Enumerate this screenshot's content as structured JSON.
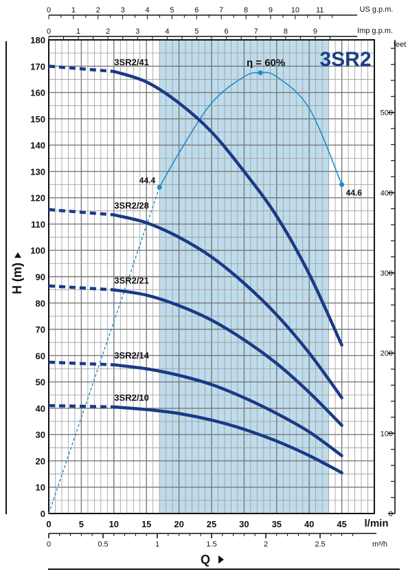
{
  "chart_data": {
    "type": "line",
    "title": "3SR2",
    "xlabel": "Q",
    "ylabel": "H (m)",
    "x_unit": "l/min",
    "x_unit_m3h": "m³/h",
    "y_unit_right": "feet",
    "top_unit_us": "US g.p.m.",
    "top_unit_imp": "Imp g.p.m.",
    "xlim": [
      0,
      50
    ],
    "ylim": [
      0,
      180
    ],
    "x_ticks": [
      0,
      5,
      10,
      15,
      20,
      25,
      30,
      35,
      40,
      45
    ],
    "x_tick_labels": [
      "0",
      "5",
      "10",
      "15",
      "20",
      "25",
      "30",
      "35",
      "40",
      "45"
    ],
    "y_ticks": [
      0,
      10,
      20,
      30,
      40,
      50,
      60,
      70,
      80,
      90,
      100,
      110,
      120,
      130,
      140,
      150,
      160,
      170,
      180
    ],
    "y_tick_labels": [
      "0",
      "10",
      "20",
      "30",
      "40",
      "50",
      "60",
      "70",
      "80",
      "90",
      "100",
      "110",
      "120",
      "130",
      "140",
      "150",
      "160",
      "170",
      "180"
    ],
    "feet_ticks": [
      0,
      100,
      200,
      300,
      400,
      500
    ],
    "feet_tick_labels": [
      "0",
      "100",
      "200",
      "300",
      "400",
      "500"
    ],
    "m3h_ticks": [
      0,
      0.5,
      1,
      1.5,
      2,
      2.5
    ],
    "m3h_tick_labels": [
      "0",
      "0.5",
      "1",
      "1.5",
      "2",
      "2.5"
    ],
    "us_gpm_ticks": [
      0,
      1,
      2,
      3,
      4,
      5,
      6,
      7,
      8,
      9,
      10,
      11
    ],
    "us_gpm_tick_labels": [
      "0",
      "1",
      "2",
      "3",
      "4",
      "5",
      "6",
      "7",
      "8",
      "9",
      "10",
      "11"
    ],
    "imp_gpm_ticks": [
      0,
      1,
      2,
      3,
      4,
      5,
      6,
      7,
      8,
      9
    ],
    "imp_gpm_tick_labels": [
      "0",
      "1",
      "2",
      "3",
      "4",
      "5",
      "6",
      "7",
      "8",
      "9"
    ],
    "operating_range": [
      17,
      43
    ],
    "grid": true,
    "series": [
      {
        "name": "3SR2/41",
        "points": [
          [
            0,
            170
          ],
          [
            10,
            168
          ],
          [
            15,
            164
          ],
          [
            20,
            156
          ],
          [
            25,
            145
          ],
          [
            30,
            130
          ],
          [
            35,
            113
          ],
          [
            40,
            91
          ],
          [
            45,
            64
          ]
        ]
      },
      {
        "name": "3SR2/28",
        "points": [
          [
            0,
            115.5
          ],
          [
            10,
            113.5
          ],
          [
            15,
            110.5
          ],
          [
            20,
            105
          ],
          [
            25,
            97.5
          ],
          [
            30,
            87.5
          ],
          [
            35,
            75.5
          ],
          [
            40,
            61
          ],
          [
            45,
            44
          ]
        ]
      },
      {
        "name": "3SR2/21",
        "points": [
          [
            0,
            86.5
          ],
          [
            10,
            85
          ],
          [
            15,
            83
          ],
          [
            20,
            79
          ],
          [
            25,
            73.5
          ],
          [
            30,
            66
          ],
          [
            35,
            57
          ],
          [
            40,
            46
          ],
          [
            45,
            33.5
          ]
        ]
      },
      {
        "name": "3SR2/14",
        "points": [
          [
            0,
            57.5
          ],
          [
            10,
            56.5
          ],
          [
            15,
            55
          ],
          [
            20,
            52.5
          ],
          [
            25,
            49
          ],
          [
            30,
            44
          ],
          [
            35,
            38
          ],
          [
            40,
            31
          ],
          [
            45,
            22
          ]
        ]
      },
      {
        "name": "3SR2/10",
        "points": [
          [
            0,
            41
          ],
          [
            10,
            40.5
          ],
          [
            15,
            39.5
          ],
          [
            20,
            38
          ],
          [
            25,
            35.5
          ],
          [
            30,
            32
          ],
          [
            35,
            27.5
          ],
          [
            40,
            22
          ],
          [
            45,
            15.5
          ]
        ]
      }
    ],
    "efficiency": {
      "label": "η = 60%",
      "left_value": "44.4",
      "right_value": "44.6",
      "points": [
        [
          17,
          124
        ],
        [
          20,
          137
        ],
        [
          25,
          156
        ],
        [
          30,
          166
        ],
        [
          32.5,
          167.5
        ],
        [
          35,
          166
        ],
        [
          40,
          154
        ],
        [
          45,
          125
        ]
      ]
    }
  }
}
